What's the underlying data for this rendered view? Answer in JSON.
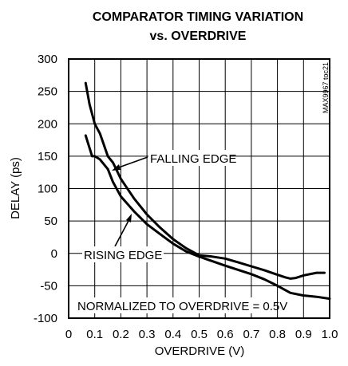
{
  "chart_data": {
    "type": "line",
    "title": "COMPARATOR TIMING VARIATION",
    "subtitle": "vs. OVERDRIVE",
    "xlabel": "OVERDRIVE (V)",
    "ylabel": "DELAY (ps)",
    "xlim": [
      0,
      1.0
    ],
    "ylim": [
      -100,
      300
    ],
    "x_ticks": [
      "0",
      "0.1",
      "0.2",
      "0.3",
      "0.4",
      "0.5",
      "0.6",
      "0.7",
      "0.8",
      "0.9",
      "1.0"
    ],
    "y_ticks": [
      "300",
      "250",
      "200",
      "150",
      "100",
      "50",
      "0",
      "-50",
      "-100"
    ],
    "grid": true,
    "part_code": "MAX9967 toc21",
    "series": [
      {
        "name": "FALLING EDGE",
        "x": [
          0.065,
          0.08,
          0.1,
          0.12,
          0.15,
          0.17,
          0.2,
          0.25,
          0.3,
          0.35,
          0.4,
          0.45,
          0.5,
          0.55,
          0.6,
          0.65,
          0.7,
          0.75,
          0.8,
          0.83,
          0.85,
          0.87,
          0.9,
          0.95,
          0.98
        ],
        "y": [
          263,
          230,
          200,
          185,
          150,
          140,
          115,
          85,
          60,
          40,
          22,
          8,
          -3,
          -5,
          -8,
          -14,
          -20,
          -26,
          -33,
          -37,
          -39,
          -38,
          -34,
          -30,
          -30
        ]
      },
      {
        "name": "RISING EDGE",
        "x": [
          0.065,
          0.09,
          0.1,
          0.12,
          0.15,
          0.17,
          0.2,
          0.25,
          0.3,
          0.35,
          0.4,
          0.45,
          0.5,
          0.6,
          0.7,
          0.75,
          0.8,
          0.85,
          0.9,
          0.95,
          1.0
        ],
        "y": [
          182,
          150,
          150,
          145,
          130,
          110,
          88,
          65,
          45,
          30,
          15,
          3,
          -5,
          -19,
          -32,
          -40,
          -50,
          -61,
          -65,
          -67,
          -70
        ]
      }
    ],
    "annotations": {
      "falling_edge": "FALLING EDGE",
      "rising_edge": "RISING EDGE",
      "normalized": "NORMALIZED TO OVERDRIVE = 0.5V"
    }
  }
}
